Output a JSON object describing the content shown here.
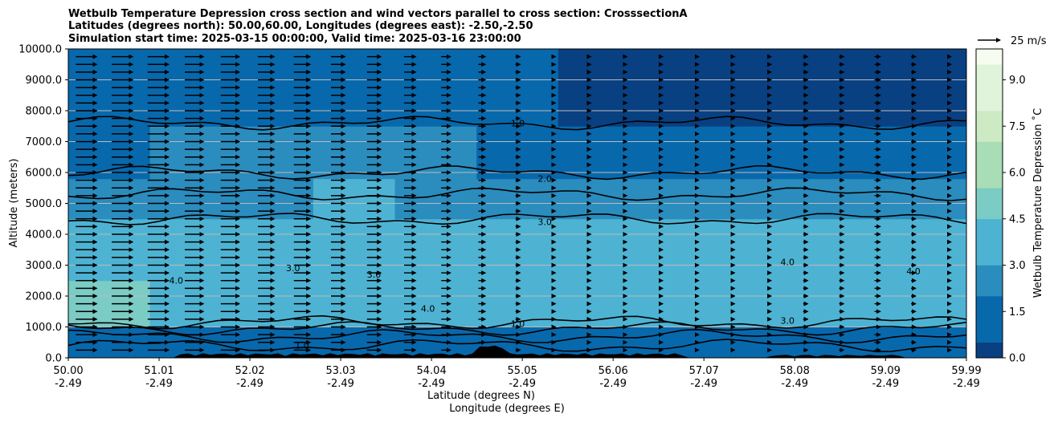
{
  "chart_data": {
    "type": "heatmap",
    "title_lines": [
      "Wetbulb Temperature Depression cross section and wind vectors parallel to cross section: CrosssectionA",
      "Latitudes (degrees north): 50.00,60.00, Longitudes (degrees east): -2.50,-2.50",
      "Simulation start time: 2025-03-15 00:00:00, Valid time: 2025-03-16 23:00:00"
    ],
    "xlabel_lat": "Latitude (degrees N)",
    "xlabel_lon": "Longitude (degrees E)",
    "ylabel": "Altitude (meters)",
    "colorbar_label": "Wetbulb Temperature Depression ˚C",
    "quiver_key_label": "25 m/s",
    "xlim": [
      50.0,
      59.99
    ],
    "ylim": [
      0,
      10000
    ],
    "x_ticks": [
      {
        "lat": "50.00",
        "lon": "-2.49",
        "value": 50.0
      },
      {
        "lat": "51.01",
        "lon": "-2.49",
        "value": 51.01
      },
      {
        "lat": "52.02",
        "lon": "-2.49",
        "value": 52.02
      },
      {
        "lat": "53.03",
        "lon": "-2.49",
        "value": 53.03
      },
      {
        "lat": "54.04",
        "lon": "-2.49",
        "value": 54.04
      },
      {
        "lat": "55.05",
        "lon": "-2.49",
        "value": 55.05
      },
      {
        "lat": "56.06",
        "lon": "-2.49",
        "value": 56.06
      },
      {
        "lat": "57.07",
        "lon": "-2.49",
        "value": 57.07
      },
      {
        "lat": "58.08",
        "lon": "-2.49",
        "value": 58.08
      },
      {
        "lat": "59.09",
        "lon": "-2.49",
        "value": 59.09
      },
      {
        "lat": "59.99",
        "lon": "-2.49",
        "value": 59.99
      }
    ],
    "y_ticks": [
      "0.0",
      "1000.0",
      "2000.0",
      "3000.0",
      "4000.0",
      "5000.0",
      "6000.0",
      "7000.0",
      "8000.0",
      "9000.0",
      "10000.0"
    ],
    "colorbar_range": [
      0,
      10
    ],
    "colorbar_ticks": [
      "0.0",
      "1.5",
      "3.0",
      "4.5",
      "6.0",
      "7.5",
      "9.0"
    ],
    "colorbar_levels": 20,
    "colormap": [
      "#084081",
      "#0868ac",
      "#2b8cbe",
      "#4eb3d3",
      "#7bccc4",
      "#a8ddb5",
      "#ccebc5",
      "#e0f3db",
      "#f7fcf0"
    ],
    "contour_levels": [
      1.0,
      2.0,
      3.0,
      4.0
    ],
    "depression_profile": {
      "note_x": "latitude",
      "layers": [
        {
          "top_m": 300,
          "values": [
            1.0,
            1.2,
            1.0,
            1.1,
            0.9,
            0.8,
            1.0,
            1.0,
            0.9,
            0.8,
            1.0
          ]
        },
        {
          "top_m": 1000,
          "values": [
            1.6,
            1.5,
            1.5,
            1.4,
            1.6,
            1.3,
            1.4,
            1.5,
            1.4,
            1.3,
            1.5
          ]
        },
        {
          "top_m": 2500,
          "values": [
            5.0,
            3.6,
            3.4,
            3.3,
            3.4,
            3.3,
            3.4,
            3.7,
            3.8,
            4.3,
            3.8
          ]
        },
        {
          "top_m": 4500,
          "values": [
            4.0,
            3.8,
            4.1,
            3.4,
            3.2,
            3.3,
            3.5,
            3.6,
            3.4,
            3.4,
            3.3
          ]
        },
        {
          "top_m": 5800,
          "values": [
            2.3,
            2.6,
            3.1,
            3.2,
            3.0,
            2.7,
            2.4,
            2.5,
            2.4,
            2.2,
            2.1
          ]
        },
        {
          "top_m": 7500,
          "values": [
            1.8,
            2.2,
            2.2,
            2.0,
            1.9,
            1.6,
            1.5,
            1.5,
            1.5,
            1.4,
            1.3
          ]
        },
        {
          "top_m": 10000,
          "values": [
            0.8,
            0.8,
            0.7,
            0.8,
            0.7,
            0.7,
            0.6,
            0.6,
            0.6,
            0.5,
            0.5
          ]
        }
      ]
    },
    "wind_vector_rows_m": [
      250,
      500,
      750,
      1000,
      1250,
      1500,
      1750,
      2000,
      2250,
      2500,
      2750,
      3000,
      3250,
      3500,
      3750,
      4000,
      4250,
      4500,
      4750,
      5000,
      5250,
      5500,
      5750,
      6000,
      6250,
      6500,
      6750,
      7000,
      7250,
      7500,
      7750,
      8000,
      8250,
      8500,
      8750,
      9000,
      9250,
      9500,
      9750
    ],
    "wind_vector_cols_lat": [
      50.2,
      50.6,
      51.0,
      51.4,
      51.8,
      52.2,
      52.6,
      53.0,
      53.4,
      53.8,
      54.2,
      54.6,
      55.0,
      55.4,
      55.8,
      56.2,
      56.6,
      57.0,
      57.4,
      57.8,
      58.2,
      58.6,
      59.0,
      59.4,
      59.8
    ],
    "wind_speed_ms_by_col": [
      9,
      9,
      9,
      8,
      8,
      7,
      7,
      6,
      6,
      5,
      4,
      3,
      2,
      1.5,
      1,
      1,
      1,
      1,
      1,
      1.5,
      2,
      2,
      2.5,
      2,
      1.5
    ]
  }
}
